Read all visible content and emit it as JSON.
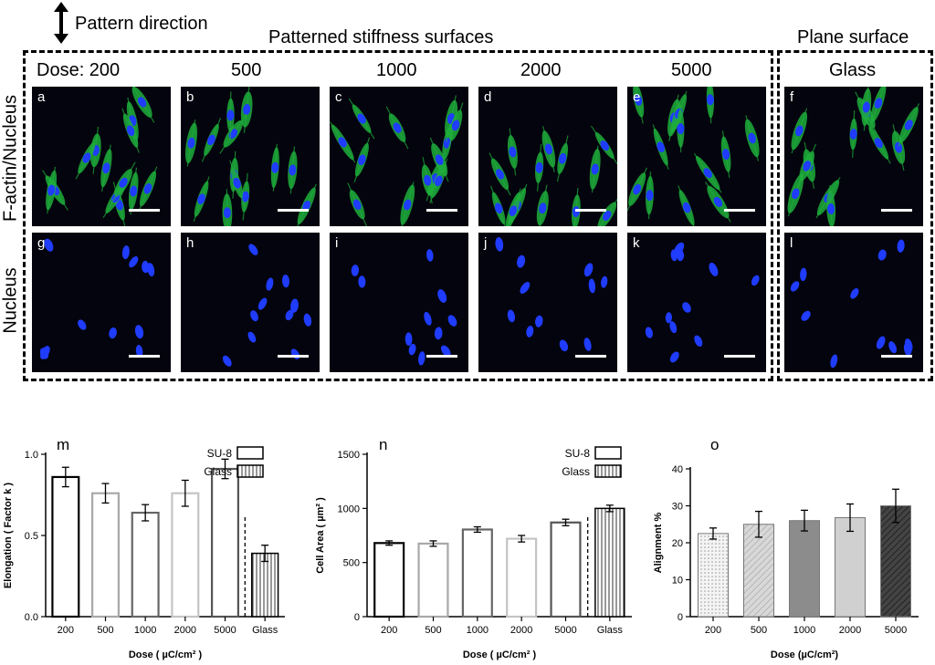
{
  "header": {
    "arrow_icon": "double-headed-vertical-arrow",
    "pattern_direction": "Pattern direction",
    "group_patterned": "Patterned stiffness surfaces",
    "group_plane": "Plane surface"
  },
  "columns": [
    "Dose: 200",
    "500",
    "1000",
    "2000",
    "5000",
    "Glass"
  ],
  "row_labels": [
    "F-actin/Nucleus",
    "Nucleus"
  ],
  "panel_letters": [
    "a",
    "b",
    "c",
    "d",
    "e",
    "f",
    "g",
    "h",
    "i",
    "j",
    "k",
    "l"
  ],
  "colors": {
    "actin": "#1fae3c",
    "nucleus": "#1f3cff",
    "background": "#03040d"
  },
  "chart_data": [
    {
      "type": "bar",
      "panel": "m",
      "categories": [
        "200",
        "500",
        "1000",
        "2000",
        "5000",
        "Glass"
      ],
      "values": [
        0.86,
        0.76,
        0.64,
        0.76,
        0.91,
        0.39
      ],
      "errors": [
        0.06,
        0.06,
        0.05,
        0.08,
        0.06,
        0.05
      ],
      "xlabel": "Dose ( µC/cm² )",
      "ylabel": "Elongation ( Factor k )",
      "ylim": [
        0,
        1.0
      ],
      "yticks": [
        "0.0",
        "0.5",
        "1.0"
      ],
      "legend": [
        "SU-8",
        "Glass"
      ],
      "divider_after": "5000"
    },
    {
      "type": "bar",
      "panel": "n",
      "categories": [
        "200",
        "500",
        "1000",
        "2000",
        "5000",
        "Glass"
      ],
      "values": [
        680,
        675,
        805,
        720,
        870,
        1000
      ],
      "errors": [
        20,
        25,
        25,
        30,
        30,
        30
      ],
      "xlabel": "Dose ( µC/cm² )",
      "ylabel": "Cell Area ( µm² )",
      "ylim": [
        0,
        1500
      ],
      "yticks": [
        "0",
        "500",
        "1000",
        "1500"
      ],
      "legend": [
        "SU-8",
        "Glass"
      ],
      "divider_after": "5000"
    },
    {
      "type": "bar",
      "panel": "o",
      "categories": [
        "200",
        "500",
        "1000",
        "2000",
        "5000"
      ],
      "values": [
        22.5,
        25,
        26,
        26.8,
        30
      ],
      "errors": [
        1.5,
        3.5,
        2.8,
        3.7,
        4.5
      ],
      "xlabel": "Dose (µC/cm²)",
      "ylabel": "Alignment %",
      "ylim": [
        0,
        40
      ],
      "yticks": [
        "0",
        "10",
        "20",
        "30",
        "40"
      ]
    }
  ]
}
